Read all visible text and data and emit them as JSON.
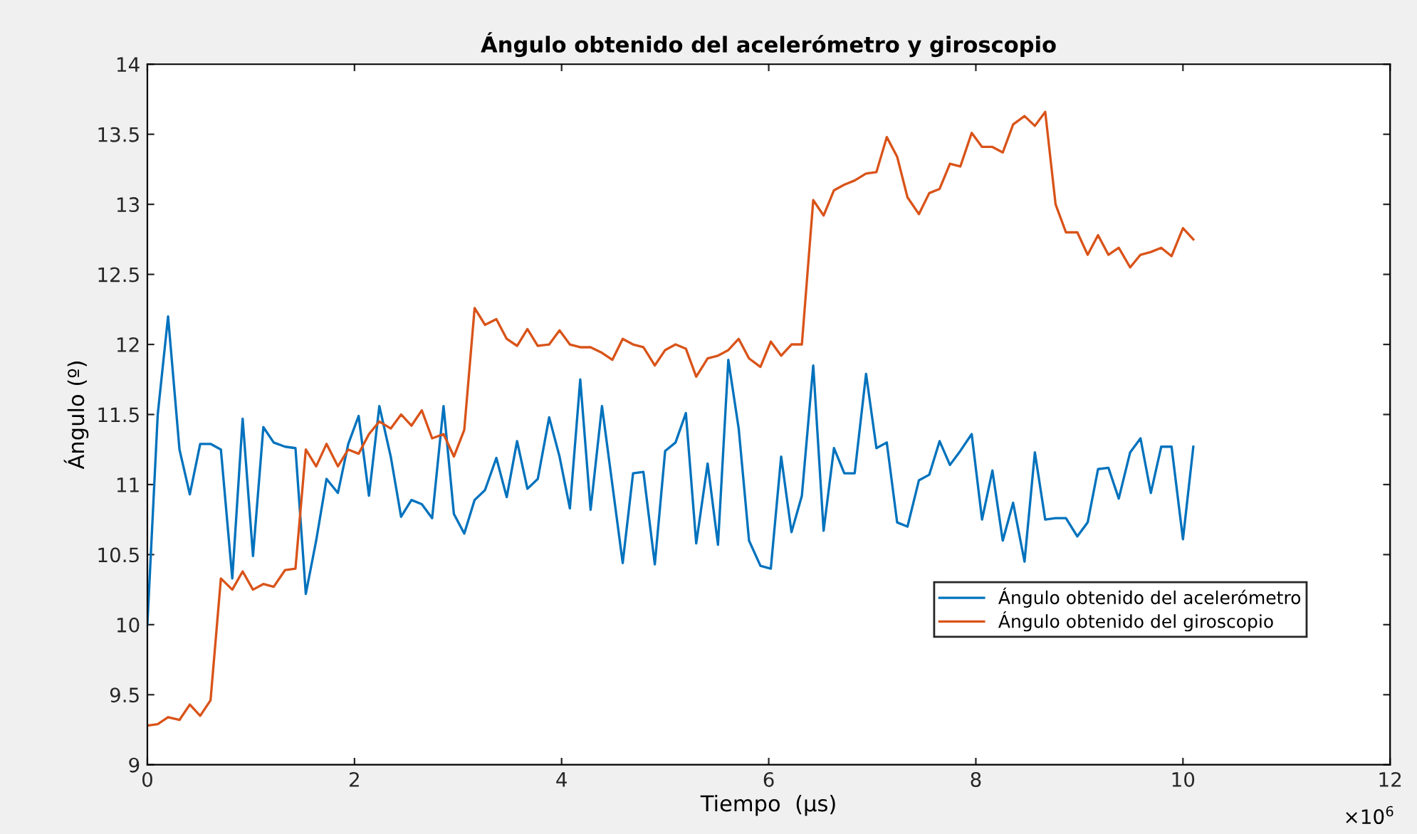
{
  "chart_data": {
    "type": "line",
    "title": "Ángulo obtenido del acelerómetro y giroscopio",
    "xlabel": "Tiempo  (μs)",
    "ylabel": "Ángulo (º)",
    "annotations": [
      "×10$^{6}$"
    ],
    "x": [
      0,
      0.1,
      0.2,
      0.31,
      0.41,
      0.51,
      0.61,
      0.71,
      0.82,
      0.92,
      1.02,
      1.12,
      1.22,
      1.33,
      1.43,
      1.53,
      1.63,
      1.73,
      1.84,
      1.94,
      2.04,
      2.14,
      2.24,
      2.35,
      2.45,
      2.55,
      2.65,
      2.75,
      2.86,
      2.96,
      3.06,
      3.16,
      3.26,
      3.37,
      3.47,
      3.57,
      3.67,
      3.77,
      3.88,
      3.98,
      4.08,
      4.18,
      4.28,
      4.39,
      4.49,
      4.59,
      4.69,
      4.79,
      4.9,
      5.0,
      5.1,
      5.2,
      5.3,
      5.41,
      5.51,
      5.61,
      5.71,
      5.81,
      5.92,
      6.02,
      6.12,
      6.22,
      6.32,
      6.43,
      6.53,
      6.63,
      6.73,
      6.83,
      6.94,
      7.04,
      7.14,
      7.24,
      7.34,
      7.45,
      7.55,
      7.65,
      7.75,
      7.85,
      7.96,
      8.06,
      8.16,
      8.26,
      8.36,
      8.47,
      8.57,
      8.67,
      8.77,
      8.87,
      8.98,
      9.08,
      9.18,
      9.28,
      9.38,
      9.49,
      9.59,
      9.69,
      9.79,
      9.89,
      10.0,
      10.1
    ],
    "series": [
      {
        "name": "Ángulo obtenido del acelerómetro",
        "color": "#0072bd",
        "values": [
          10.0,
          11.5,
          12.2,
          11.25,
          10.93,
          11.29,
          11.29,
          11.25,
          10.33,
          11.47,
          10.49,
          11.41,
          11.3,
          11.27,
          11.26,
          10.22,
          10.6,
          11.04,
          10.94,
          11.29,
          11.49,
          10.92,
          11.56,
          11.2,
          10.77,
          10.89,
          10.86,
          10.76,
          11.56,
          10.79,
          10.65,
          10.89,
          10.96,
          11.19,
          10.91,
          11.31,
          10.97,
          11.04,
          11.48,
          11.2,
          10.83,
          11.75,
          10.82,
          11.56,
          11.0,
          10.44,
          11.08,
          11.09,
          10.43,
          11.24,
          11.3,
          11.51,
          10.58,
          11.15,
          10.57,
          11.89,
          11.4,
          10.6,
          10.42,
          10.4,
          11.2,
          10.66,
          10.92,
          11.85,
          10.67,
          11.26,
          11.08,
          11.08,
          11.79,
          11.26,
          11.3,
          10.73,
          10.7,
          11.03,
          11.07,
          11.31,
          11.14,
          11.24,
          11.36,
          10.75,
          11.1,
          10.6,
          10.87,
          10.45,
          11.23,
          10.75,
          10.76,
          10.76,
          10.63,
          10.73,
          11.11,
          11.12,
          10.9,
          11.23,
          11.33,
          10.94,
          11.27,
          11.27,
          10.61,
          11.27
        ]
      },
      {
        "name": "Ángulo obtenido del giroscopio",
        "color": "#d95319",
        "values": [
          9.28,
          9.29,
          9.34,
          9.32,
          9.43,
          9.35,
          9.46,
          10.33,
          10.25,
          10.38,
          10.25,
          10.29,
          10.27,
          10.39,
          10.4,
          11.25,
          11.13,
          11.29,
          11.13,
          11.25,
          11.22,
          11.36,
          11.45,
          11.4,
          11.5,
          11.42,
          11.53,
          11.33,
          11.36,
          11.2,
          11.39,
          12.26,
          12.14,
          12.18,
          12.04,
          11.99,
          12.11,
          11.99,
          12.0,
          12.1,
          12.0,
          11.98,
          11.98,
          11.94,
          11.89,
          12.04,
          12.0,
          11.98,
          11.85,
          11.96,
          12.0,
          11.97,
          11.77,
          11.9,
          11.92,
          11.96,
          12.04,
          11.9,
          11.84,
          12.02,
          11.92,
          12.0,
          12.0,
          13.03,
          12.92,
          13.1,
          13.14,
          13.17,
          13.22,
          13.23,
          13.48,
          13.34,
          13.05,
          12.93,
          13.08,
          13.11,
          13.29,
          13.27,
          13.51,
          13.41,
          13.41,
          13.37,
          13.57,
          13.63,
          13.56,
          13.66,
          13.0,
          12.8,
          12.8,
          12.64,
          12.78,
          12.64,
          12.69,
          12.55,
          12.64,
          12.66,
          12.69,
          12.63,
          12.83,
          12.75
        ]
      }
    ],
    "xlim": [
      0,
      12
    ],
    "xticks": [
      0,
      2,
      4,
      6,
      8,
      10,
      12
    ],
    "ylim": [
      9,
      14
    ],
    "yticks": [
      9,
      9.5,
      10,
      10.5,
      11,
      11.5,
      12,
      12.5,
      13,
      13.5,
      14
    ],
    "grid": false,
    "legend": "bottom right",
    "marker": "none",
    "line_style": "solid"
  }
}
